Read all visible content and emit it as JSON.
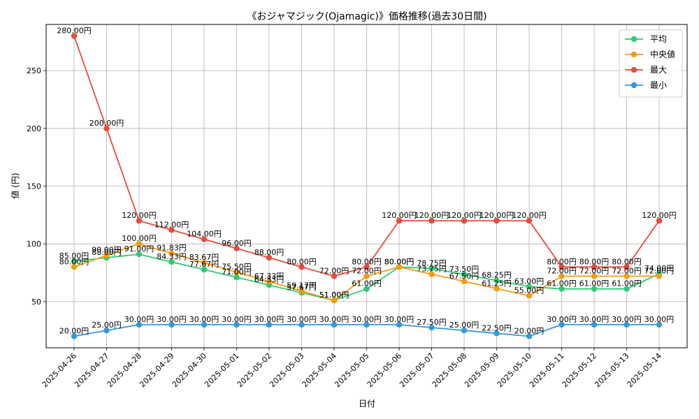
{
  "chart_data": {
    "type": "line",
    "title": "《おジャマジック(Ojamagic)》価格推移(過去30日間)",
    "xlabel": "日付",
    "ylabel": "値 (円)",
    "categories": [
      "2025-04-26",
      "2025-04-27",
      "2025-04-28",
      "2025-04-29",
      "2025-04-30",
      "2025-05-01",
      "2025-05-02",
      "2025-05-03",
      "2025-05-04",
      "2025-05-05",
      "2025-05-06",
      "2025-05-07",
      "2025-05-08",
      "2025-05-09",
      "2025-05-10",
      "2025-05-11",
      "2025-05-12",
      "2025-05-13",
      "2025-05-14"
    ],
    "ylim": [
      10,
      290
    ],
    "yticks": [
      50,
      100,
      150,
      200,
      250
    ],
    "grid": true,
    "legend_position": "top-right",
    "value_suffix": "円",
    "series": [
      {
        "name": "平均",
        "color": "#2ecc71",
        "values": [
          85.0,
          88.0,
          91.0,
          84.33,
          77.67,
          71.0,
          64.33,
          57.67,
          51.0,
          61.0,
          80.0,
          78.75,
          73.5,
          68.25,
          63.0,
          61.0,
          61.0,
          61.0,
          74.0
        ]
      },
      {
        "name": "中央値",
        "color": "#f39c12",
        "values": [
          80.0,
          90.0,
          100.0,
          91.83,
          83.67,
          75.5,
          67.33,
          59.17,
          51.0,
          72.0,
          80.0,
          73.75,
          67.5,
          61.25,
          55.0,
          72.0,
          72.0,
          72.0,
          72.0
        ]
      },
      {
        "name": "最大",
        "color": "#e74c3c",
        "values": [
          280.0,
          200.0,
          120.0,
          112.0,
          104.0,
          96.0,
          88.0,
          80.0,
          72.0,
          80.0,
          120.0,
          120.0,
          120.0,
          120.0,
          120.0,
          80.0,
          80.0,
          80.0,
          120.0
        ]
      },
      {
        "name": "最小",
        "color": "#3498db",
        "values": [
          20.0,
          25.0,
          30.0,
          30.0,
          30.0,
          30.0,
          30.0,
          30.0,
          30.0,
          30.0,
          30.0,
          27.5,
          25.0,
          22.5,
          20.0,
          30.0,
          30.0,
          30.0,
          30.0
        ]
      }
    ]
  }
}
